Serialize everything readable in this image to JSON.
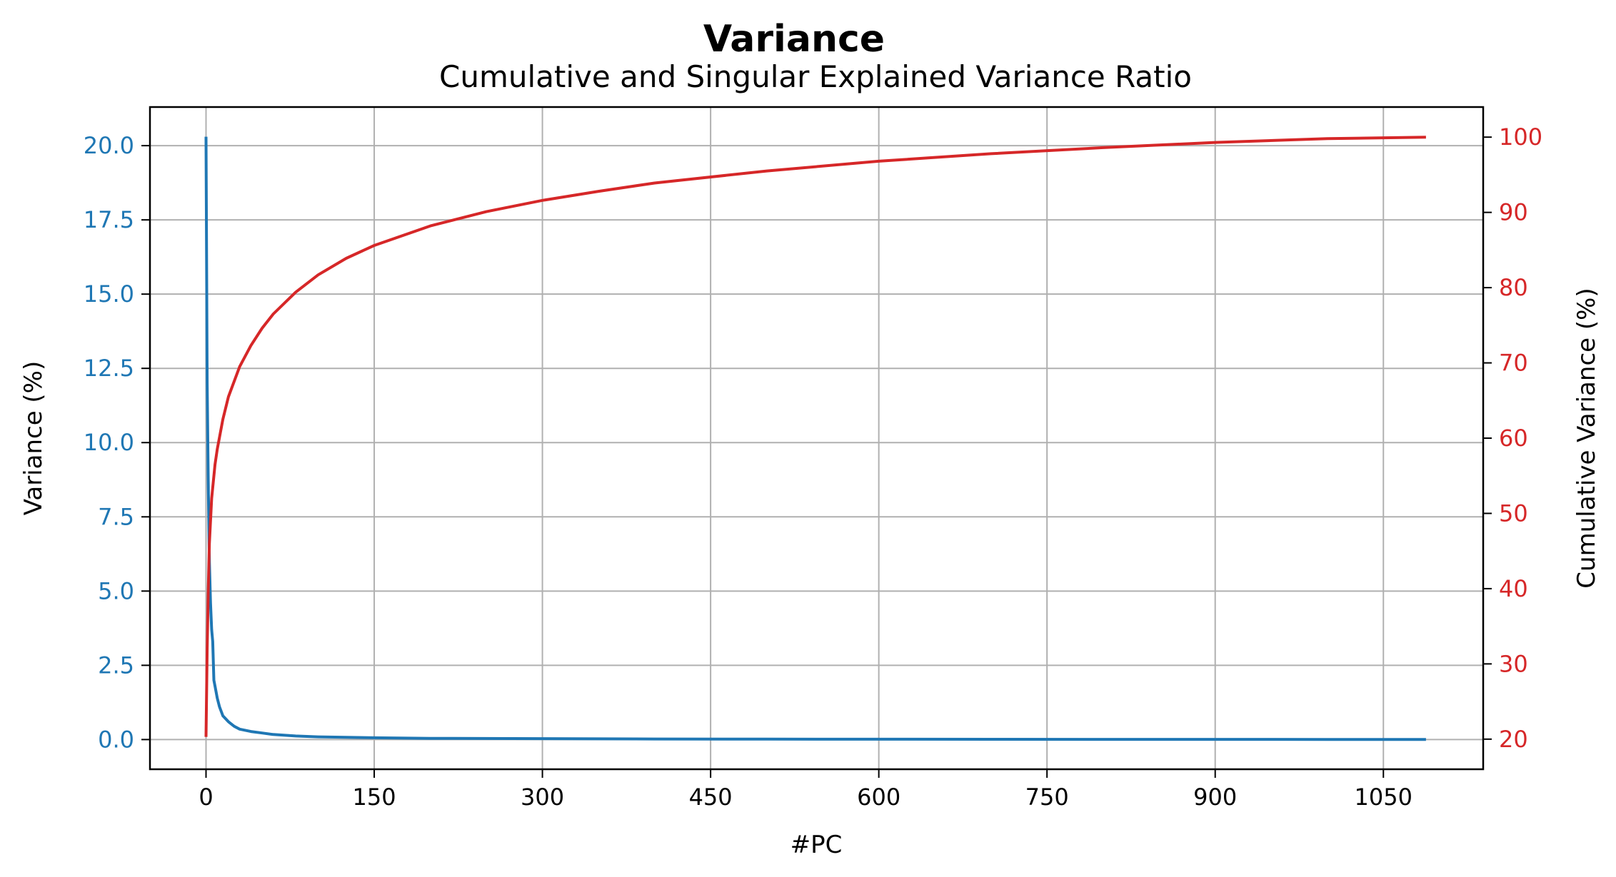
{
  "chart_data": {
    "type": "line",
    "title": "Variance",
    "subtitle": "Cumulative and Singular Explained Variance Ratio",
    "xlabel": "#PC",
    "ylabel_left": "Variance (%)",
    "ylabel_right": "Cumulative Variance (%)",
    "xlim": [
      -50,
      1139
    ],
    "ylim_left": [
      -1.0,
      21.3
    ],
    "ylim_right": [
      16,
      104
    ],
    "x_ticks": [
      0,
      150,
      300,
      450,
      600,
      750,
      900,
      1050
    ],
    "y_left_ticks": [
      "0.0",
      "2.5",
      "5.0",
      "7.5",
      "10.0",
      "12.5",
      "15.0",
      "17.5",
      "20.0"
    ],
    "y_right_ticks": [
      "20",
      "30",
      "40",
      "50",
      "60",
      "70",
      "80",
      "90",
      "100"
    ],
    "grid": true,
    "series": [
      {
        "axis": "left",
        "color": "#1f77b4",
        "x": [
          0,
          1,
          2,
          3,
          4,
          5,
          6,
          7,
          8,
          10,
          12,
          15,
          20,
          25,
          30,
          40,
          50,
          60,
          80,
          100,
          150,
          200,
          300,
          400,
          500,
          600,
          700,
          800,
          900,
          1000,
          1088
        ],
        "y": [
          20.3,
          12.0,
          8.5,
          6.0,
          4.6,
          3.7,
          3.3,
          2.0,
          1.8,
          1.4,
          1.1,
          0.8,
          0.6,
          0.45,
          0.35,
          0.27,
          0.22,
          0.17,
          0.12,
          0.09,
          0.06,
          0.04,
          0.03,
          0.02,
          0.015,
          0.012,
          0.01,
          0.008,
          0.006,
          0.004,
          0.002
        ]
      },
      {
        "axis": "right",
        "color": "#d62728",
        "x": [
          0,
          1,
          2,
          3,
          5,
          8,
          10,
          15,
          20,
          30,
          40,
          50,
          60,
          80,
          100,
          125,
          150,
          200,
          250,
          300,
          350,
          400,
          500,
          600,
          700,
          800,
          900,
          1000,
          1088
        ],
        "y": [
          20.3,
          32,
          40,
          46,
          52,
          56.5,
          58.5,
          62.5,
          65.5,
          69.5,
          72.3,
          74.6,
          76.5,
          79.4,
          81.7,
          83.9,
          85.6,
          88.2,
          90.1,
          91.6,
          92.8,
          93.9,
          95.5,
          96.8,
          97.8,
          98.6,
          99.3,
          99.8,
          100.0
        ]
      }
    ]
  }
}
